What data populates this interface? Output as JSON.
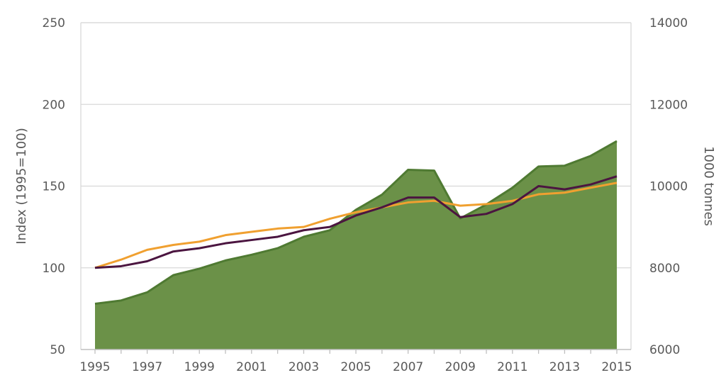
{
  "chart_data": {
    "type": "line",
    "title": "",
    "ylabel": "Index (1995=100)",
    "y2label": "1000 tonnes",
    "ylim": [
      50,
      250
    ],
    "y2lim": [
      6000,
      14000
    ],
    "yticks": [
      50,
      100,
      150,
      200,
      250
    ],
    "y2ticks": [
      6000,
      8000,
      10000,
      12000,
      14000
    ],
    "grid": true,
    "legend": "none",
    "x": [
      1995,
      1996,
      1997,
      1998,
      1999,
      2000,
      2001,
      2002,
      2003,
      2004,
      2005,
      2006,
      2007,
      2008,
      2009,
      2010,
      2011,
      2012,
      2013,
      2014,
      2015
    ],
    "xticks": [
      1995,
      1997,
      1999,
      2001,
      2003,
      2005,
      2007,
      2009,
      2011,
      2013,
      2015
    ],
    "series": [
      {
        "type": "area",
        "axis": "right",
        "color": "#6b9148",
        "line_color": "#4f7a32",
        "values": [
          7120,
          7200,
          7400,
          7820,
          7980,
          8180,
          8320,
          8480,
          8760,
          8920,
          9420,
          9790,
          10400,
          10380,
          9210,
          9550,
          9960,
          10480,
          10500,
          10740,
          11100
        ]
      },
      {
        "type": "line",
        "axis": "left",
        "color": "#f0a030",
        "values": [
          100,
          105,
          111,
          114,
          116,
          120,
          122,
          124,
          125,
          130,
          134,
          137,
          140,
          141,
          138,
          139,
          141,
          145,
          146,
          149,
          152
        ]
      },
      {
        "type": "line",
        "axis": "left",
        "color": "#4b1540",
        "values": [
          100,
          101,
          104,
          110,
          112,
          115,
          117,
          119,
          123,
          125,
          132,
          137,
          143,
          143,
          131,
          133,
          139,
          150,
          148,
          151,
          156
        ]
      }
    ]
  }
}
